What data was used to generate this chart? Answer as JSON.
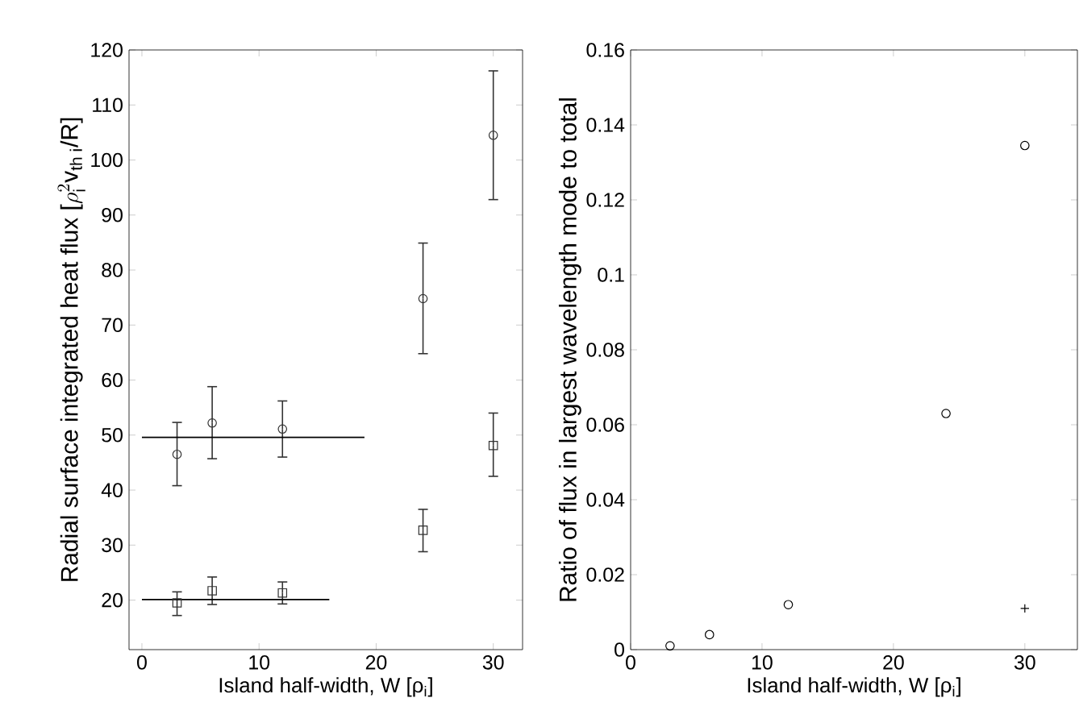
{
  "chart_data": [
    {
      "type": "scatter",
      "xlabel": "Island half-width, W [ρ$_{i}$]",
      "ylabel": "\\text{Radial surface integrated heat flux [}\\rho_{\\text{i}}^{2}\\text{v}_{\\text{th i}}\\text{/R]}",
      "xlim": [
        -1.1,
        32.5
      ],
      "ylim": [
        11,
        120
      ],
      "xticks": [
        0,
        10,
        20,
        30
      ],
      "yticks": [
        20,
        30,
        40,
        50,
        60,
        70,
        80,
        90,
        100,
        110,
        120
      ],
      "grid": false,
      "series": [
        {
          "marker": "circle",
          "color": "#333333",
          "x": [
            3,
            6,
            12,
            24,
            30
          ],
          "values": [
            46.5,
            52.2,
            51.1,
            74.8,
            104.5
          ],
          "errors": [
            [
              40.8,
              52.3
            ],
            [
              45.7,
              58.8
            ],
            [
              46,
              56.2
            ],
            [
              64.8,
              84.9
            ],
            [
              92.8,
              116.2
            ]
          ]
        },
        {
          "marker": "square",
          "color": "#333333",
          "x": [
            3,
            6,
            12,
            24,
            30
          ],
          "values": [
            19.5,
            21.7,
            21.3,
            32.7,
            48.1
          ],
          "errors": [
            [
              17.2,
              21.5
            ],
            [
              19.2,
              24.2
            ],
            [
              19.3,
              23.3
            ],
            [
              28.8,
              36.5
            ],
            [
              42.5,
              54
            ]
          ]
        },
        {
          "type": "line",
          "marker": "none",
          "color": "#000000",
          "x": [
            0,
            19
          ],
          "values": [
            49.6,
            49.6
          ]
        },
        {
          "type": "line",
          "marker": "none",
          "color": "#000000",
          "x": [
            0,
            16
          ],
          "values": [
            20.1,
            20.1
          ]
        }
      ]
    },
    {
      "type": "scatter",
      "xlabel": "Island half-width, W [ρ$_{i}$]",
      "ylabel": "Ratio of flux in largest wavelength mode to total",
      "xlim": [
        0,
        34
      ],
      "ylim": [
        0,
        0.16
      ],
      "xticks": [
        0,
        10,
        20,
        30
      ],
      "yticks": [
        0,
        0.02,
        0.04,
        0.06,
        0.08,
        0.1,
        0.12,
        0.14,
        0.16
      ],
      "grid": false,
      "series": [
        {
          "marker": "circle",
          "color": "#000000",
          "x": [
            3,
            6,
            12,
            24,
            30
          ],
          "values": [
            0.001,
            0.004,
            0.012,
            0.063,
            0.1345
          ]
        },
        {
          "marker": "cross",
          "color": "#000000",
          "x": [
            30
          ],
          "values": [
            0.011
          ]
        }
      ]
    }
  ]
}
